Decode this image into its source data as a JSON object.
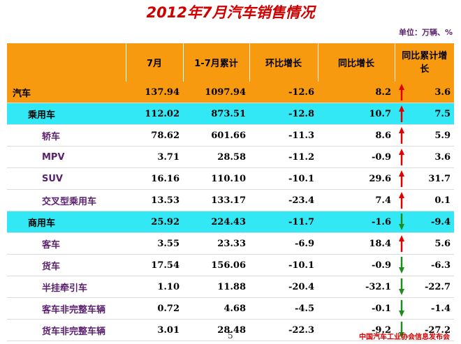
{
  "title": "2012年7月汽车销售情况",
  "unit": "单位：万辆、%",
  "headers": [
    "",
    "7月",
    "1-7月累计",
    "环比增长",
    "同比增长",
    "同比累计增长"
  ],
  "rows": [
    {
      "label": "汽车",
      "level": 0,
      "style": "auto",
      "m7": "137.94",
      "ytd": "1097.94",
      "mom": "-12.6",
      "yoy": "8.2",
      "yoy_ytd": "3.6",
      "trend": "up"
    },
    {
      "label": "乘用车",
      "level": 1,
      "style": "cyan",
      "m7": "112.02",
      "ytd": "873.51",
      "mom": "-12.8",
      "yoy": "10.7",
      "yoy_ytd": "7.5",
      "trend": "up"
    },
    {
      "label": "轿车",
      "level": 2,
      "style": "plain",
      "m7": "78.62",
      "ytd": "601.66",
      "mom": "-11.3",
      "yoy": "8.6",
      "yoy_ytd": "5.9",
      "trend": "up"
    },
    {
      "label": "MPV",
      "level": 2,
      "style": "plain",
      "m7": "3.71",
      "ytd": "28.58",
      "mom": "-11.2",
      "yoy": "-0.9",
      "yoy_ytd": "3.6",
      "trend": "up"
    },
    {
      "label": "SUV",
      "level": 2,
      "style": "plain",
      "m7": "16.16",
      "ytd": "110.10",
      "mom": "-10.1",
      "yoy": "29.6",
      "yoy_ytd": "31.7",
      "trend": "up"
    },
    {
      "label": "交叉型乘用车",
      "level": 2,
      "style": "plain",
      "m7": "13.53",
      "ytd": "133.17",
      "mom": "-23.4",
      "yoy": "7.4",
      "yoy_ytd": "0.1",
      "trend": "up"
    },
    {
      "label": "商用车",
      "level": 1,
      "style": "cyan",
      "m7": "25.92",
      "ytd": "224.43",
      "mom": "-11.7",
      "yoy": "-1.6",
      "yoy_ytd": "-9.4",
      "trend": "down"
    },
    {
      "label": "客车",
      "level": 2,
      "style": "plain",
      "m7": "3.55",
      "ytd": "23.33",
      "mom": "-6.9",
      "yoy": "18.4",
      "yoy_ytd": "5.6",
      "trend": "up"
    },
    {
      "label": "货车",
      "level": 2,
      "style": "plain",
      "m7": "17.54",
      "ytd": "156.06",
      "mom": "-10.1",
      "yoy": "-0.9",
      "yoy_ytd": "-6.3",
      "trend": "down"
    },
    {
      "label": "半挂牵引车",
      "level": 2,
      "style": "plain",
      "m7": "1.10",
      "ytd": "11.88",
      "mom": "-20.4",
      "yoy": "-32.1",
      "yoy_ytd": "-22.7",
      "trend": "down"
    },
    {
      "label": "客车非完整车辆",
      "level": 2,
      "style": "plain",
      "m7": "0.72",
      "ytd": "4.68",
      "mom": "-4.5",
      "yoy": "-0.1",
      "yoy_ytd": "-1.4",
      "trend": "down"
    },
    {
      "label": "货车非完整车辆",
      "level": 2,
      "style": "plain",
      "m7": "3.01",
      "ytd": "28.48",
      "mom": "-22.3",
      "yoy": "-9.2",
      "yoy_ytd": "-27.2",
      "trend": "down"
    }
  ],
  "colors": {
    "up": "#e00000",
    "down": "#1e8c1e",
    "header": "#f79a0f",
    "highlight": "#33e8f5",
    "title": "#d00000"
  },
  "footer": {
    "page": "5",
    "org": "中国汽车工业协会信息发布会"
  }
}
